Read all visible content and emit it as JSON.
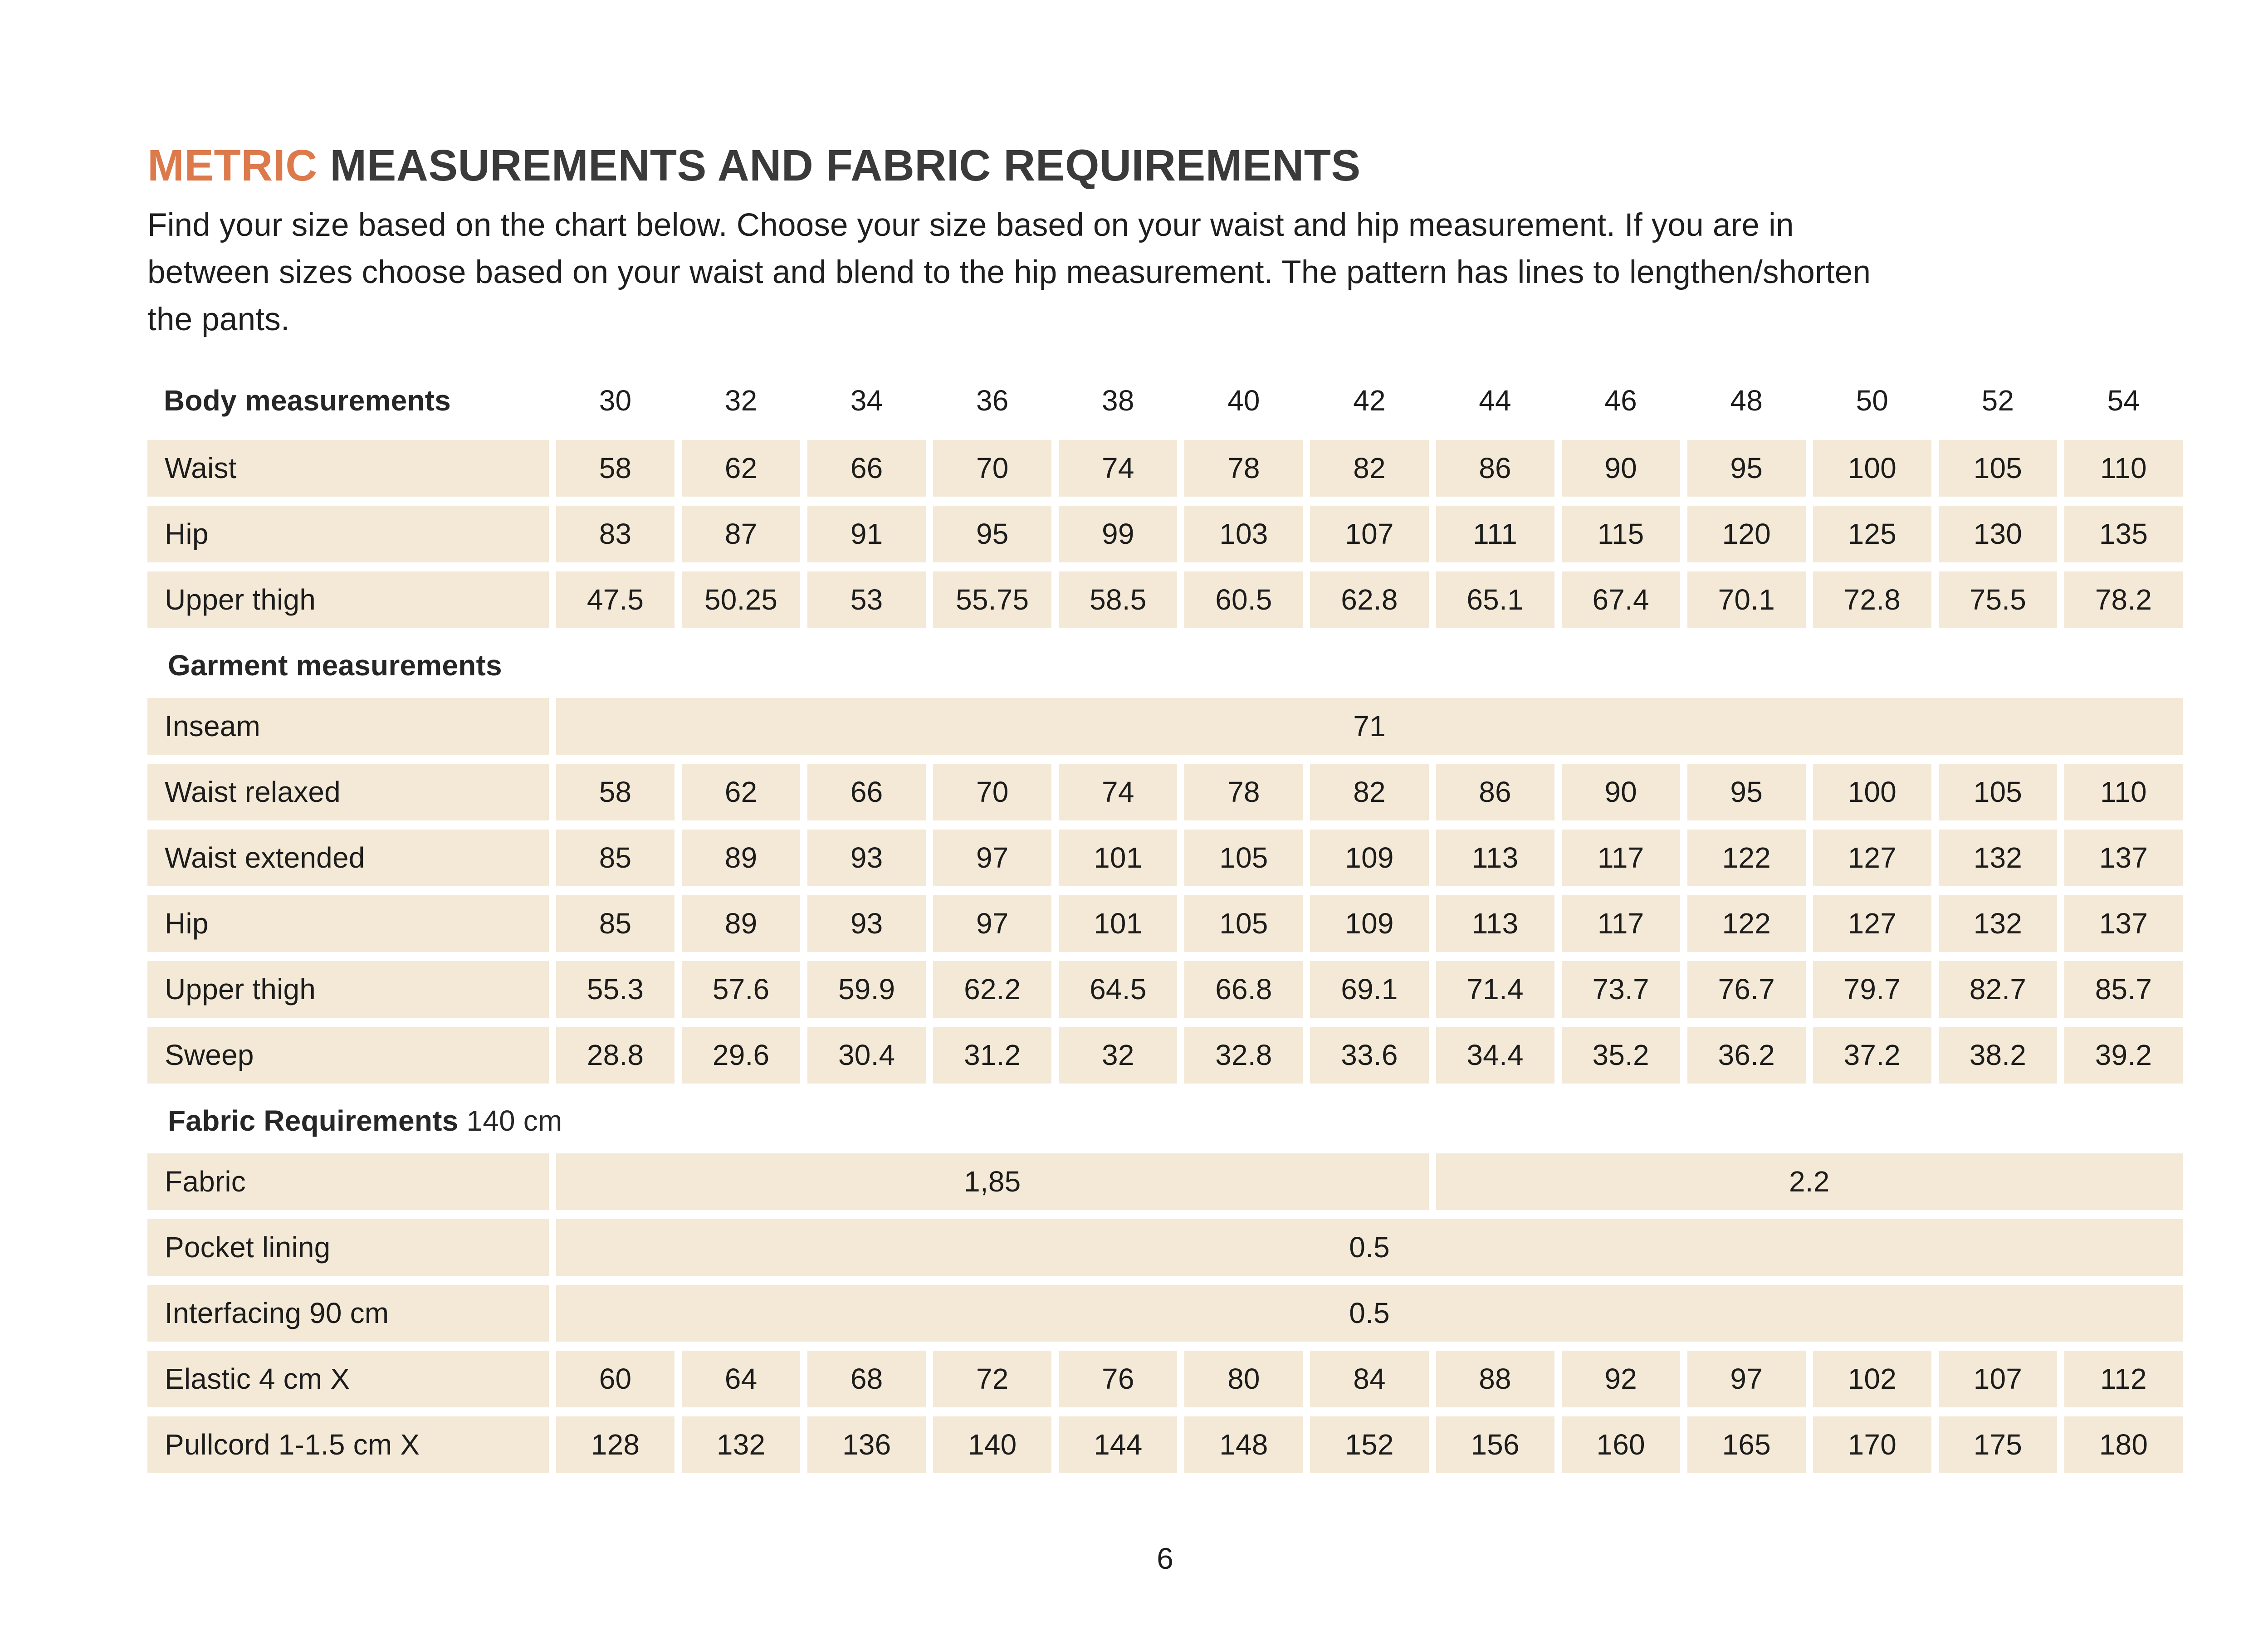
{
  "page": {
    "title": {
      "accent": "METRIC",
      "rest": "MEASUREMENTS AND FABRIC REQUIREMENTS"
    },
    "intro": "Find your size based on the chart below. Choose your size based on your waist and hip measurement. If you are in\nbetween sizes choose based on your waist and blend to the hip measurement. The pattern has lines to lengthen/shorten\nthe pants.",
    "page_number": "6"
  },
  "colors": {
    "accent_orange": "#DC7A4C",
    "cell_beige": "#F3E9D6"
  },
  "table": {
    "columns": [
      "30",
      "32",
      "34",
      "36",
      "38",
      "40",
      "42",
      "44",
      "46",
      "48",
      "50",
      "52",
      "54"
    ],
    "rows": [
      {
        "type": "header",
        "label": "Body measurements"
      },
      {
        "type": "values",
        "label": "Waist",
        "values": [
          "58",
          "62",
          "66",
          "70",
          "74",
          "78",
          "82",
          "86",
          "90",
          "95",
          "100",
          "105",
          "110"
        ]
      },
      {
        "type": "values",
        "label": "Hip",
        "values": [
          "83",
          "87",
          "91",
          "95",
          "99",
          "103",
          "107",
          "111",
          "115",
          "120",
          "125",
          "130",
          "135"
        ]
      },
      {
        "type": "values",
        "label": "Upper thigh",
        "values": [
          "47.5",
          "50.25",
          "53",
          "55.75",
          "58.5",
          "60.5",
          "62.8",
          "65.1",
          "67.4",
          "70.1",
          "72.8",
          "75.5",
          "78.2"
        ]
      },
      {
        "type": "section",
        "label": "Garment measurements",
        "suffix": ""
      },
      {
        "type": "span",
        "label": "Inseam",
        "value": "71",
        "span": 13
      },
      {
        "type": "values",
        "label": "Waist relaxed",
        "values": [
          "58",
          "62",
          "66",
          "70",
          "74",
          "78",
          "82",
          "86",
          "90",
          "95",
          "100",
          "105",
          "110"
        ]
      },
      {
        "type": "values",
        "label": "Waist extended",
        "values": [
          "85",
          "89",
          "93",
          "97",
          "101",
          "105",
          "109",
          "113",
          "117",
          "122",
          "127",
          "132",
          "137"
        ]
      },
      {
        "type": "values",
        "label": "Hip",
        "values": [
          "85",
          "89",
          "93",
          "97",
          "101",
          "105",
          "109",
          "113",
          "117",
          "122",
          "127",
          "132",
          "137"
        ]
      },
      {
        "type": "values",
        "label": "Upper thigh",
        "values": [
          "55.3",
          "57.6",
          "59.9",
          "62.2",
          "64.5",
          "66.8",
          "69.1",
          "71.4",
          "73.7",
          "76.7",
          "79.7",
          "82.7",
          "85.7"
        ]
      },
      {
        "type": "values",
        "label": "Sweep",
        "values": [
          "28.8",
          "29.6",
          "30.4",
          "31.2",
          "32",
          "32.8",
          "33.6",
          "34.4",
          "35.2",
          "36.2",
          "37.2",
          "38.2",
          "39.2"
        ]
      },
      {
        "type": "section",
        "label": "Fabric Requirements",
        "suffix": "140 cm"
      },
      {
        "type": "multispan",
        "label": "Fabric",
        "spans": [
          {
            "value": "1,85",
            "cols": 7
          },
          {
            "value": "2.2",
            "cols": 6
          }
        ]
      },
      {
        "type": "span",
        "label": "Pocket lining",
        "value": "0.5",
        "span": 13
      },
      {
        "type": "span",
        "label": "Interfacing 90 cm",
        "value": "0.5",
        "span": 13
      },
      {
        "type": "values",
        "label": "Elastic 4 cm X",
        "values": [
          "60",
          "64",
          "68",
          "72",
          "76",
          "80",
          "84",
          "88",
          "92",
          "97",
          "102",
          "107",
          "112"
        ]
      },
      {
        "type": "values",
        "label": "Pullcord 1-1.5 cm X",
        "values": [
          "128",
          "132",
          "136",
          "140",
          "144",
          "148",
          "152",
          "156",
          "160",
          "165",
          "170",
          "175",
          "180"
        ]
      }
    ]
  }
}
